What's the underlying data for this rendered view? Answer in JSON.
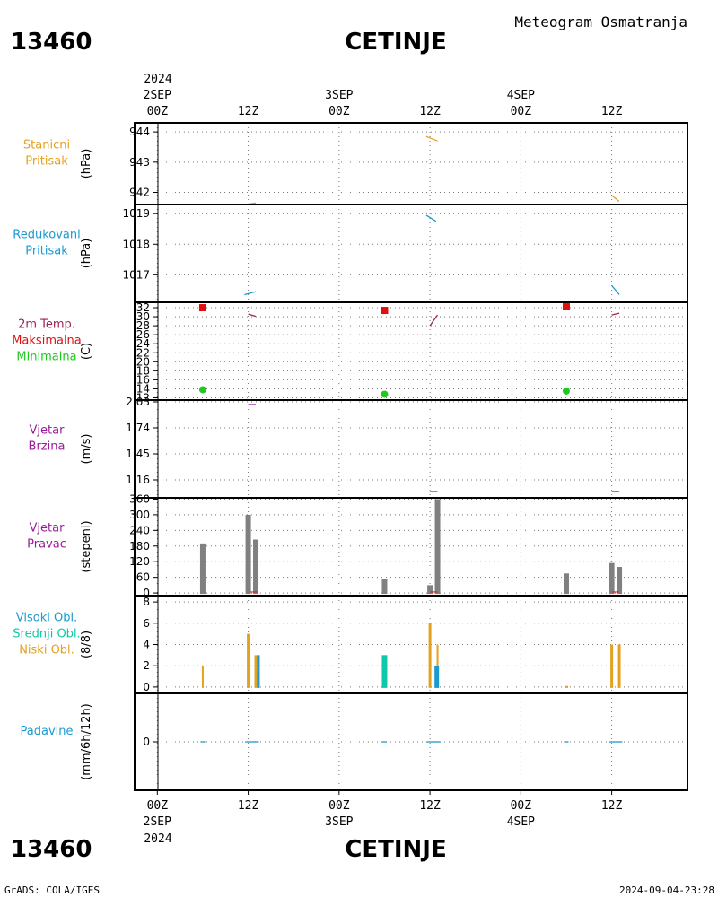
{
  "header": {
    "station_id": "13460",
    "station_name": "CETINJE",
    "product": "Meteogram Osmatranja"
  },
  "footer": {
    "station_id": "13460",
    "station_name": "CETINJE",
    "credit": "GrADS: COLA/IGES",
    "timestamp": "2024-09-04-23:28"
  },
  "time_axis": {
    "top_year": "2024",
    "bottom_year": "2024",
    "date_labels": [
      "2SEP",
      "3SEP",
      "4SEP"
    ],
    "tick_labels": [
      "00Z",
      "12Z",
      "00Z",
      "12Z",
      "00Z",
      "12Z"
    ],
    "tick_hours": [
      0,
      12,
      24,
      36,
      48,
      60
    ],
    "date_hours": [
      0,
      24,
      48
    ],
    "range_hours": [
      -3,
      70
    ]
  },
  "colors": {
    "orange": "#e6a020",
    "blue": "#1c9ad0",
    "red": "#e11010",
    "green": "#20c820",
    "magenta": "#a0205a",
    "purple": "#9a1a9a",
    "teal": "#10c8a8",
    "gray": "#808080"
  },
  "chart_data": [
    {
      "type": "line",
      "panel": "station-pressure",
      "side_labels": [
        "Stanicni",
        "Pritisak"
      ],
      "side_color": "orange",
      "unit": "(hPa)",
      "ylim": [
        941.6,
        944.3
      ],
      "yticks": [
        942,
        943,
        944
      ],
      "series": [
        {
          "color": "orange",
          "segments": [
            [
              [
                11.5,
                941.6
              ],
              [
                13,
                941.65
              ]
            ],
            [
              [
                35.5,
                943.85
              ],
              [
                37,
                943.7
              ]
            ],
            [
              [
                60,
                941.9
              ],
              [
                61,
                941.7
              ]
            ]
          ]
        }
      ]
    },
    {
      "type": "line",
      "panel": "reduced-pressure",
      "side_labels": [
        "Redukovani",
        "Pritisak"
      ],
      "side_color": "blue",
      "unit": "(hPa)",
      "ylim": [
        1016.1,
        1019.3
      ],
      "yticks": [
        1017,
        1018,
        1019
      ],
      "series": [
        {
          "color": "blue",
          "segments": [
            [
              [
                11.5,
                1016.35
              ],
              [
                13,
                1016.45
              ]
            ],
            [
              [
                35.5,
                1018.95
              ],
              [
                36.8,
                1018.75
              ]
            ],
            [
              [
                60,
                1016.65
              ],
              [
                61,
                1016.35
              ]
            ]
          ]
        }
      ]
    },
    {
      "type": "scatter",
      "panel": "temperature",
      "side_labels": [
        "2m Temp.",
        "Maksimalna",
        "Minimalna"
      ],
      "side_colors": [
        "magenta",
        "red",
        "green"
      ],
      "unit": "(C)",
      "ylim": [
        11.5,
        33.2
      ],
      "yticks": [
        12,
        14,
        16,
        18,
        20,
        22,
        24,
        26,
        28,
        30,
        32
      ],
      "series": [
        {
          "name": "Maksimalna",
          "color": "red",
          "marker": "square",
          "points": [
            [
              6,
              32
            ],
            [
              30,
              31.4
            ],
            [
              54,
              32.2
            ]
          ]
        },
        {
          "name": "Minimalna",
          "color": "green",
          "marker": "circle",
          "points": [
            [
              6,
              13.8
            ],
            [
              30,
              12.8
            ],
            [
              54,
              13.5
            ]
          ]
        },
        {
          "name": "2m Temp.",
          "color": "magenta",
          "segments": [
            [
              [
                12,
                30.6
              ],
              [
                13,
                30.1
              ]
            ],
            [
              [
                36,
                28
              ],
              [
                37,
                30.4
              ]
            ],
            [
              [
                60,
                30.4
              ],
              [
                61,
                30.8
              ]
            ]
          ]
        }
      ]
    },
    {
      "type": "line",
      "panel": "wind-speed",
      "side_labels": [
        "Vjetar",
        "Brzina"
      ],
      "side_color": "purple",
      "unit": "(m/s)",
      "ylim": [
        0.96,
        2.05
      ],
      "yticks": [
        1.16,
        1.45,
        1.74,
        2.03
      ],
      "ytick_labels": [
        "1.16",
        "1.45",
        "1.74",
        "2.03"
      ],
      "series": [
        {
          "color": "purple",
          "segments": [
            [
              [
                12,
                2.0
              ],
              [
                13,
                2.0
              ]
            ],
            [
              [
                36,
                1.03
              ],
              [
                37,
                1.03
              ]
            ],
            [
              [
                60,
                1.03
              ],
              [
                61,
                1.03
              ]
            ]
          ]
        }
      ]
    },
    {
      "type": "bar",
      "panel": "wind-direction",
      "side_labels": [
        "Vjetar",
        "Pravac"
      ],
      "side_color": "purple",
      "unit": "(stepeni)",
      "ylim": [
        -10,
        365
      ],
      "yticks": [
        0,
        60,
        120,
        180,
        240,
        300,
        360
      ],
      "bars": [
        {
          "x": 6,
          "value": 190,
          "color": "gray"
        },
        {
          "x": 12,
          "value": 300,
          "color": "gray"
        },
        {
          "x": 13,
          "value": 205,
          "color": "gray"
        },
        {
          "x": 30,
          "value": 55,
          "color": "gray"
        },
        {
          "x": 36,
          "value": 30,
          "color": "gray"
        },
        {
          "x": 37,
          "value": 360,
          "color": "gray"
        },
        {
          "x": 54,
          "value": 75,
          "color": "gray"
        },
        {
          "x": 60,
          "value": 115,
          "color": "gray"
        },
        {
          "x": 61,
          "value": 100,
          "color": "gray"
        }
      ]
    },
    {
      "type": "bar",
      "panel": "clouds",
      "side_labels": [
        "Visoki Obl.",
        "Srednji Obl.",
        "Niski Obl."
      ],
      "side_colors": [
        "blue",
        "teal",
        "orange"
      ],
      "unit": "(8/8)",
      "ylim": [
        -0.6,
        8.6
      ],
      "yticks": [
        0,
        2,
        4,
        6,
        8
      ],
      "bars": [
        {
          "x": 6,
          "value": 2,
          "color": "orange",
          "w": 2
        },
        {
          "x": 12,
          "value": 5,
          "color": "orange",
          "w": 3
        },
        {
          "x": 13,
          "value": 3,
          "color": "orange",
          "w": 3
        },
        {
          "x": 13.35,
          "value": 3,
          "color": "blue",
          "w": 3
        },
        {
          "x": 30,
          "value": 3,
          "color": "teal",
          "w": 6
        },
        {
          "x": 36,
          "value": 6,
          "color": "orange",
          "w": 3
        },
        {
          "x": 37,
          "value": 4,
          "color": "orange",
          "w": 2
        },
        {
          "x": 36.9,
          "value": 2,
          "color": "blue",
          "w": 5
        },
        {
          "x": 54,
          "value": 0.1,
          "color": "orange",
          "w": 4
        },
        {
          "x": 60,
          "value": 4,
          "color": "orange",
          "w": 3
        },
        {
          "x": 61,
          "value": 4,
          "color": "orange",
          "w": 3
        }
      ]
    },
    {
      "type": "line",
      "panel": "precipitation",
      "side_labels": [
        "Padavine"
      ],
      "side_color": "blue",
      "unit": "(mm/6h/12h)",
      "ylim": [
        -1,
        1
      ],
      "yticks": [
        0
      ],
      "series": [
        {
          "color": "blue",
          "segments": [
            [
              [
                5.7,
                0
              ],
              [
                6.3,
                0
              ]
            ],
            [
              [
                11.6,
                0
              ],
              [
                13.4,
                0
              ]
            ],
            [
              [
                29.7,
                0
              ],
              [
                30.3,
                0
              ]
            ],
            [
              [
                35.6,
                0
              ],
              [
                37.4,
                0
              ]
            ],
            [
              [
                53.7,
                0
              ],
              [
                54.3,
                0
              ]
            ],
            [
              [
                59.6,
                0
              ],
              [
                61.4,
                0
              ]
            ]
          ]
        }
      ]
    }
  ]
}
